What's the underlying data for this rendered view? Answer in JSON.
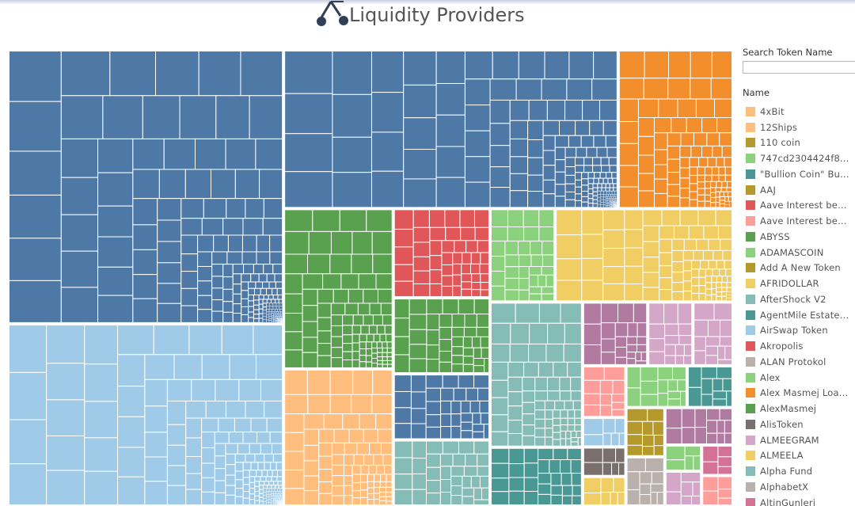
{
  "header": {
    "title": "Liquidity Providers"
  },
  "search": {
    "label": "Search Token Name",
    "placeholder": "",
    "value": ""
  },
  "legend": {
    "title": "Name",
    "items": [
      {
        "label": "4xBit",
        "color": "#ffbe7d"
      },
      {
        "label": "12Ships",
        "color": "#ffbe7d"
      },
      {
        "label": "110 coin",
        "color": "#b6992d"
      },
      {
        "label": "747cd2304424f8...",
        "color": "#8cd17d"
      },
      {
        "label": "\"Bullion Coin\" Bu...",
        "color": "#499894"
      },
      {
        "label": "AAJ",
        "color": "#b6992d"
      },
      {
        "label": "Aave Interest bea...",
        "color": "#e15759"
      },
      {
        "label": "Aave Interest bea...",
        "color": "#ff9d9a"
      },
      {
        "label": "ABYSS",
        "color": "#59a14f"
      },
      {
        "label": "ADAMASCOIN",
        "color": "#8cd17d"
      },
      {
        "label": "Add A New Token",
        "color": "#b6992d"
      },
      {
        "label": "AFRIDOLLAR",
        "color": "#f1ce63"
      },
      {
        "label": "AfterShock V2",
        "color": "#86bcb6"
      },
      {
        "label": "AgentMile Estate ...",
        "color": "#499894"
      },
      {
        "label": "AirSwap Token",
        "color": "#a0cbe8"
      },
      {
        "label": "Akropolis",
        "color": "#e15759"
      },
      {
        "label": "ALAN Protokol",
        "color": "#bab0ac"
      },
      {
        "label": "Alex",
        "color": "#8cd17d"
      },
      {
        "label": "Alex Masmej Loan...",
        "color": "#f28e2b"
      },
      {
        "label": "AlexMasmej",
        "color": "#59a14f"
      },
      {
        "label": "AlisToken",
        "color": "#79706e"
      },
      {
        "label": "ALMEEGRAM",
        "color": "#d4a6c8"
      },
      {
        "label": "ALMEELA",
        "color": "#f1ce63"
      },
      {
        "label": "Alpha Fund",
        "color": "#86bcb6"
      },
      {
        "label": "AlphabetX",
        "color": "#bab0ac"
      },
      {
        "label": "AltinGunleri",
        "color": "#d37295"
      }
    ]
  },
  "chart_data": {
    "type": "treemap",
    "title": "Liquidity Providers",
    "colors": {
      "blue": "#4e79a7",
      "lightblue": "#a0cbe8",
      "orange": "#f28e2b",
      "green": "#59a14f",
      "peach": "#ffbe7d",
      "red": "#e15759",
      "lightgreen": "#8cd17d",
      "teal": "#86bcb6",
      "yellow": "#f1ce63",
      "darkteal": "#499894",
      "purple": "#b07aa1",
      "pink": "#d4a6c8",
      "gold": "#b6992d",
      "taupe": "#bab0ac",
      "salmon": "#ff9d9a",
      "brown": "#79706e",
      "rose": "#d37295"
    },
    "groups": [
      {
        "color": "blue",
        "value": 236
      },
      {
        "color": "lightblue",
        "value": 157
      },
      {
        "color": "blue",
        "value": 166
      },
      {
        "color": "orange",
        "value": 57
      },
      {
        "color": "green",
        "value": 55
      },
      {
        "color": "peach",
        "value": 47
      },
      {
        "color": "red",
        "value": 27
      },
      {
        "color": "green",
        "value": 23
      },
      {
        "color": "blue",
        "value": 20
      },
      {
        "color": "teal",
        "value": 20
      },
      {
        "color": "lightgreen",
        "value": 19
      },
      {
        "color": "yellow",
        "value": 52
      },
      {
        "color": "teal",
        "value": 42
      },
      {
        "color": "darkteal",
        "value": 17
      },
      {
        "color": "purple",
        "value": 13
      },
      {
        "color": "pink",
        "value": 9
      },
      {
        "color": "pink",
        "value": 8
      },
      {
        "color": "salmon",
        "value": 7
      },
      {
        "color": "lightblue",
        "value": 4
      },
      {
        "color": "brown",
        "value": 4
      },
      {
        "color": "yellow",
        "value": 4
      },
      {
        "color": "lightgreen",
        "value": 8
      },
      {
        "color": "darkteal",
        "value": 6
      },
      {
        "color": "gold",
        "value": 6
      },
      {
        "color": "taupe",
        "value": 6
      },
      {
        "color": "purple",
        "value": 8
      },
      {
        "color": "lightgreen",
        "value": 3
      },
      {
        "color": "pink",
        "value": 4
      },
      {
        "color": "rose",
        "value": 3
      },
      {
        "color": "salmon",
        "value": 3
      }
    ]
  }
}
